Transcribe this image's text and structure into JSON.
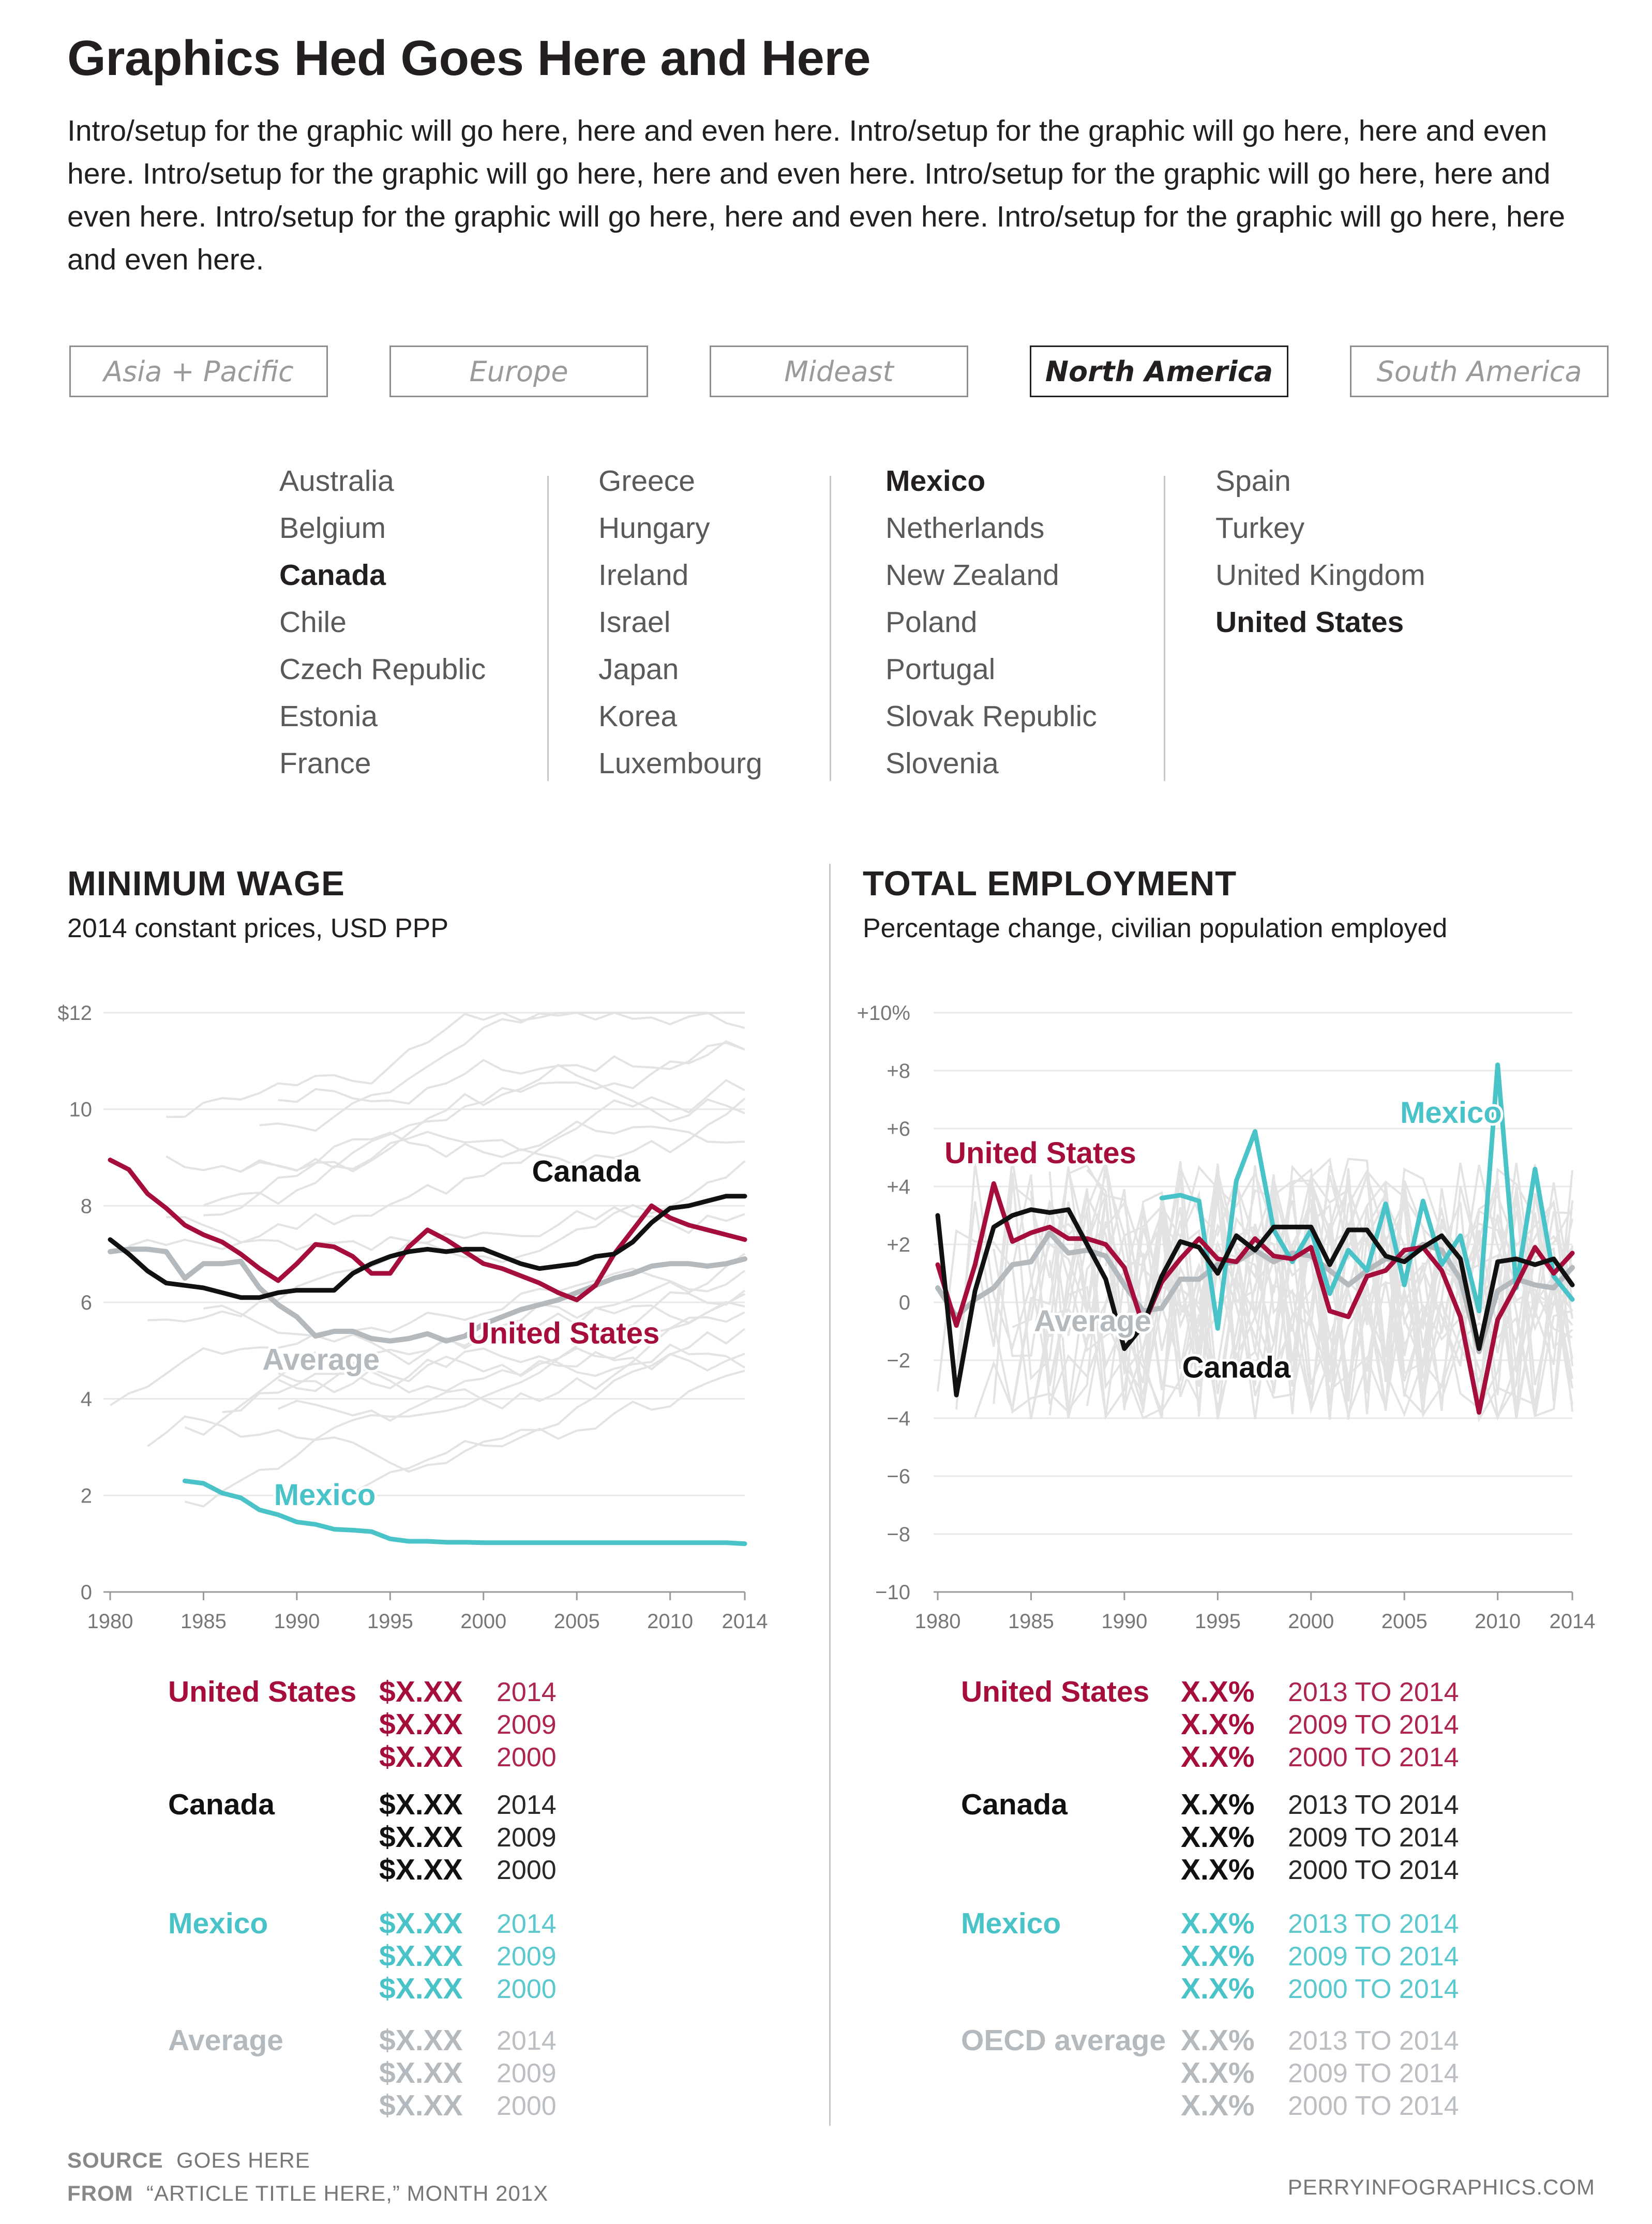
{
  "title": "Graphics Hed Goes Here and Here",
  "intro": "Intro/setup for the graphic will go here, here and even here. Intro/setup for the graphic will go here, here and even here. Intro/setup for the graphic will go here, here and even here. Intro/setup for the graphic will go here, here and even here. Intro/setup for the graphic will go here, here and even here. Intro/setup for the graphic will go here, here and even here.",
  "tabs": [
    "Asia + Pacific",
    "Europe",
    "Mideast",
    "North America",
    "South America"
  ],
  "active_tab": "North America",
  "countries": [
    [
      "Australia",
      "Belgium",
      "Canada",
      "Chile",
      "Czech Republic",
      "Estonia",
      "France"
    ],
    [
      "Greece",
      "Hungary",
      "Ireland",
      "Israel",
      "Japan",
      "Korea",
      "Luxembourg"
    ],
    [
      "Mexico",
      "Netherlands",
      "New Zealand",
      "Poland",
      "Portugal",
      "Slovak Republic",
      "Slovenia"
    ],
    [
      "Spain",
      "Turkey",
      "United Kingdom",
      "United States"
    ]
  ],
  "selected_countries": [
    "Canada",
    "Mexico",
    "United States"
  ],
  "colors": {
    "united_states": "#a50e3a",
    "canada": "#111111",
    "mexico": "#4ac3c8",
    "average": "#b4b9be",
    "background_lines": "#e3e3e3",
    "grid": "#e8e8e8"
  },
  "chart_data": [
    {
      "type": "line",
      "title": "MINIMUM WAGE",
      "subtitle": "2014 constant prices, USD PPP",
      "ylim": [
        0,
        12
      ],
      "y_ticks": [
        0,
        2,
        4,
        6,
        8,
        10,
        12
      ],
      "y_tick_labels": [
        "0",
        "2",
        "4",
        "6",
        "8",
        "10",
        "$12"
      ],
      "x_ticks": [
        1980,
        1985,
        1990,
        1995,
        2000,
        2005,
        2010,
        2014
      ],
      "x": [
        1980,
        1981,
        1982,
        1983,
        1984,
        1985,
        1986,
        1987,
        1988,
        1989,
        1990,
        1991,
        1992,
        1993,
        1994,
        1995,
        1996,
        1997,
        1998,
        1999,
        2000,
        2001,
        2002,
        2003,
        2004,
        2005,
        2006,
        2007,
        2008,
        2009,
        2010,
        2011,
        2012,
        2013,
        2014
      ],
      "series": [
        {
          "name": "United States",
          "key": "united_states",
          "values": [
            8.95,
            8.75,
            8.25,
            7.95,
            7.6,
            7.4,
            7.25,
            7.0,
            6.7,
            6.45,
            6.8,
            7.2,
            7.15,
            6.95,
            6.6,
            6.6,
            7.15,
            7.5,
            7.3,
            7.05,
            6.8,
            6.7,
            6.55,
            6.4,
            6.2,
            6.05,
            6.35,
            7.0,
            7.5,
            8.0,
            7.75,
            7.6,
            7.5,
            7.4,
            7.3
          ]
        },
        {
          "name": "Canada",
          "key": "canada",
          "values": [
            7.3,
            7.0,
            6.65,
            6.4,
            6.35,
            6.3,
            6.2,
            6.1,
            6.1,
            6.2,
            6.25,
            6.25,
            6.25,
            6.6,
            6.8,
            6.95,
            7.05,
            7.1,
            7.05,
            7.1,
            7.1,
            6.95,
            6.8,
            6.7,
            6.75,
            6.8,
            6.95,
            7.0,
            7.25,
            7.65,
            7.95,
            8.0,
            8.1,
            8.2,
            8.2
          ]
        },
        {
          "name": "Mexico",
          "key": "mexico",
          "values": [
            null,
            null,
            null,
            null,
            2.3,
            2.25,
            2.05,
            1.95,
            1.7,
            1.6,
            1.45,
            1.4,
            1.3,
            1.28,
            1.25,
            1.1,
            1.05,
            1.05,
            1.03,
            1.03,
            1.02,
            1.02,
            1.02,
            1.02,
            1.02,
            1.02,
            1.02,
            1.02,
            1.02,
            1.02,
            1.02,
            1.02,
            1.02,
            1.02,
            1.0
          ]
        },
        {
          "name": "Average",
          "key": "average",
          "values": [
            7.05,
            7.1,
            7.1,
            7.05,
            6.5,
            6.8,
            6.8,
            6.85,
            6.3,
            5.95,
            5.7,
            5.3,
            5.4,
            5.4,
            5.25,
            5.2,
            5.25,
            5.35,
            5.2,
            5.3,
            5.55,
            5.7,
            5.85,
            5.95,
            6.05,
            6.2,
            6.35,
            6.5,
            6.6,
            6.75,
            6.8,
            6.8,
            6.75,
            6.8,
            6.9
          ]
        }
      ],
      "summary": [
        {
          "name": "United States",
          "key": "united_states",
          "rows": [
            [
              "$X.XX",
              "2014"
            ],
            [
              "$X.XX",
              "2009"
            ],
            [
              "$X.XX",
              "2000"
            ]
          ]
        },
        {
          "name": "Canada",
          "key": "canada",
          "rows": [
            [
              "$X.XX",
              "2014"
            ],
            [
              "$X.XX",
              "2009"
            ],
            [
              "$X.XX",
              "2000"
            ]
          ]
        },
        {
          "name": "Mexico",
          "key": "mexico",
          "rows": [
            [
              "$X.XX",
              "2014"
            ],
            [
              "$X.XX",
              "2009"
            ],
            [
              "$X.XX",
              "2000"
            ]
          ]
        },
        {
          "name": "Average",
          "key": "average",
          "rows": [
            [
              "$X.XX",
              "2014"
            ],
            [
              "$X.XX",
              "2009"
            ],
            [
              "$X.XX",
              "2000"
            ]
          ]
        }
      ]
    },
    {
      "type": "line",
      "title": "TOTAL EMPLOYMENT",
      "subtitle": "Percentage change,  civilian population employed",
      "ylim": [
        -10,
        10
      ],
      "y_ticks": [
        -10,
        -8,
        -6,
        -4,
        -2,
        0,
        2,
        4,
        6,
        8,
        10
      ],
      "y_tick_labels": [
        "−10",
        "−8",
        "−6",
        "−4",
        "−2",
        "0",
        "+2",
        "+4",
        "+6",
        "+8",
        "+10%"
      ],
      "x_ticks": [
        1980,
        1985,
        1990,
        1995,
        2000,
        2005,
        2010,
        2014
      ],
      "x": [
        1980,
        1981,
        1982,
        1983,
        1984,
        1985,
        1986,
        1987,
        1988,
        1989,
        1990,
        1991,
        1992,
        1993,
        1994,
        1995,
        1996,
        1997,
        1998,
        1999,
        2000,
        2001,
        2002,
        2003,
        2004,
        2005,
        2006,
        2007,
        2008,
        2009,
        2010,
        2011,
        2012,
        2013,
        2014
      ],
      "series": [
        {
          "name": "United States",
          "key": "united_states",
          "values": [
            1.3,
            -0.8,
            1.3,
            4.1,
            2.1,
            2.4,
            2.6,
            2.2,
            2.2,
            2.0,
            1.2,
            -0.8,
            0.7,
            1.5,
            2.2,
            1.5,
            1.4,
            2.2,
            1.6,
            1.5,
            1.9,
            -0.3,
            -0.5,
            0.9,
            1.1,
            1.8,
            1.9,
            1.1,
            -0.5,
            -3.8,
            -0.6,
            0.6,
            1.9,
            1.0,
            1.7
          ]
        },
        {
          "name": "Canada",
          "key": "canada",
          "values": [
            3.0,
            -3.2,
            0.4,
            2.6,
            3.0,
            3.2,
            3.1,
            3.2,
            2.0,
            0.8,
            -1.6,
            -0.8,
            0.9,
            2.1,
            1.9,
            1.0,
            2.3,
            1.8,
            2.6,
            2.6,
            2.6,
            1.3,
            2.5,
            2.5,
            1.6,
            1.4,
            1.9,
            2.3,
            1.5,
            -1.6,
            1.4,
            1.5,
            1.3,
            1.5,
            0.6
          ]
        },
        {
          "name": "Mexico",
          "key": "mexico",
          "values": [
            null,
            null,
            null,
            null,
            null,
            null,
            null,
            null,
            null,
            null,
            null,
            null,
            3.6,
            3.7,
            3.5,
            -0.9,
            4.2,
            5.9,
            2.5,
            1.4,
            2.5,
            0.3,
            1.8,
            1.1,
            3.4,
            0.6,
            3.5,
            1.3,
            2.3,
            -0.3,
            8.2,
            0.5,
            4.6,
            0.9,
            0.1
          ]
        },
        {
          "name": "Average",
          "key": "average",
          "values": [
            0.5,
            -0.5,
            0.1,
            0.5,
            1.3,
            1.4,
            2.4,
            1.7,
            1.8,
            1.6,
            0.6,
            -0.3,
            -0.2,
            0.8,
            0.8,
            1.3,
            1.4,
            1.8,
            1.4,
            1.7,
            1.6,
            1.1,
            0.6,
            1.1,
            1.5,
            1.5,
            2.0,
            1.8,
            0.8,
            -1.7,
            0.4,
            0.8,
            0.6,
            0.5,
            1.2
          ]
        }
      ],
      "summary": [
        {
          "name": "United States",
          "key": "united_states",
          "rows": [
            [
              "X.X%",
              "2013 TO 2014"
            ],
            [
              "X.X%",
              "2009 TO 2014"
            ],
            [
              "X.X%",
              "2000 TO 2014"
            ]
          ]
        },
        {
          "name": "Canada",
          "key": "canada",
          "rows": [
            [
              "X.X%",
              "2013 TO 2014"
            ],
            [
              "X.X%",
              "2009 TO 2014"
            ],
            [
              "X.X%",
              "2000 TO 2014"
            ]
          ]
        },
        {
          "name": "Mexico",
          "key": "mexico",
          "rows": [
            [
              "X.X%",
              "2013 TO 2014"
            ],
            [
              "X.X%",
              "2009 TO 2014"
            ],
            [
              "X.X%",
              "2000 TO 2014"
            ]
          ]
        },
        {
          "name": "OECD average",
          "key": "average",
          "rows": [
            [
              "X.X%",
              "2013 TO 2014"
            ],
            [
              "X.X%",
              "2009 TO 2014"
            ],
            [
              "X.X%",
              "2000 TO 2014"
            ]
          ]
        }
      ]
    }
  ],
  "footer": {
    "source_label": "SOURCE",
    "source_text": "GOES HERE",
    "from_label": "FROM",
    "from_text": "“ARTICLE TITLE HERE,” MONTH 201X",
    "credit": "PERRYINFOGRAPHICS.COM"
  }
}
